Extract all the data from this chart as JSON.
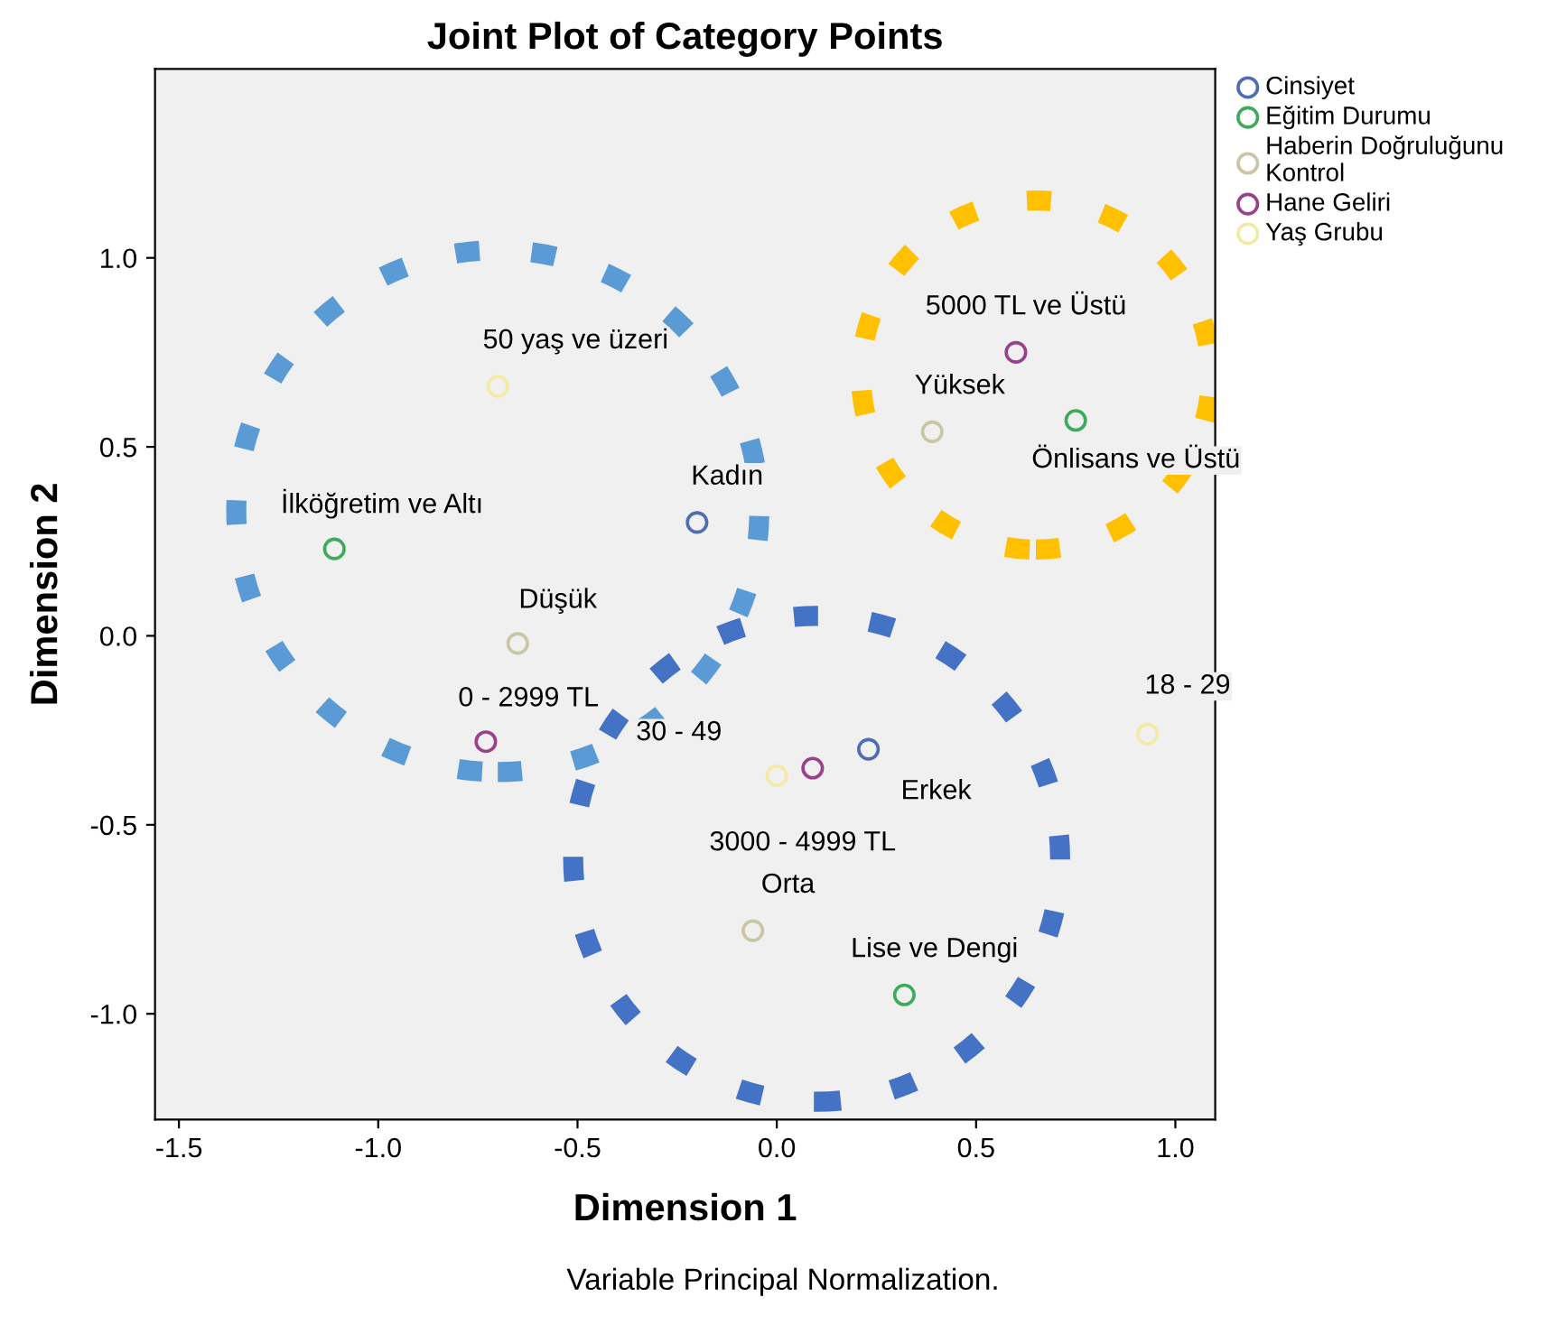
{
  "chart_data": {
    "type": "scatter",
    "title": "Joint Plot of Category Points",
    "xlabel": "Dimension 1",
    "ylabel": "Dimension 2",
    "series": [
      {
        "name": "Cinsiyet",
        "color": "#4f6db3",
        "x": [
          -0.2,
          0.23
        ],
        "values": [
          0.3,
          -0.3
        ]
      },
      {
        "name": "Eğitim Durumu",
        "color": "#3daa5c",
        "x": [
          -1.11,
          0.75,
          0.32
        ],
        "values": [
          0.23,
          0.57,
          -0.95
        ]
      },
      {
        "name": "Haberin Doğruluğunu Kontrol",
        "color": "#c9c6a6",
        "x": [
          0.39,
          -0.65,
          -0.06
        ],
        "values": [
          0.54,
          -0.02,
          -0.78
        ]
      },
      {
        "name": "Hane Geliri",
        "color": "#98428c",
        "x": [
          0.6,
          -0.73,
          0.09
        ],
        "values": [
          0.75,
          -0.28,
          -0.35
        ]
      },
      {
        "name": "Yaş Grubu",
        "color": "#f3eaa6",
        "x": [
          -0.7,
          0.93,
          0.0
        ],
        "values": [
          0.66,
          -0.26,
          -0.37
        ]
      }
    ],
    "annotations": [
      {
        "text": "Kadın",
        "x": -0.2,
        "y": 0.3
      },
      {
        "text": "Erkek",
        "x": 0.23,
        "y": -0.3
      },
      {
        "text": "İlköğretim ve Altı",
        "x": -1.11,
        "y": 0.23
      },
      {
        "text": "Önlisans ve Üstü",
        "x": 0.75,
        "y": 0.57
      },
      {
        "text": "Lise ve Dengi",
        "x": 0.32,
        "y": -0.95
      },
      {
        "text": "Yüksek",
        "x": 0.39,
        "y": 0.54
      },
      {
        "text": "Düşük",
        "x": -0.65,
        "y": -0.02
      },
      {
        "text": "Orta",
        "x": -0.06,
        "y": -0.78
      },
      {
        "text": "5000 TL ve Üstü",
        "x": 0.6,
        "y": 0.75
      },
      {
        "text": "0 - 2999 TL",
        "x": -0.73,
        "y": -0.28
      },
      {
        "text": "3000 - 4999 TL",
        "x": 0.09,
        "y": -0.35
      },
      {
        "text": "50 yaş ve üzeri",
        "x": -0.7,
        "y": 0.66
      },
      {
        "text": "18 - 29",
        "x": 0.93,
        "y": -0.26
      },
      {
        "text": "30 - 49",
        "x": 0.0,
        "y": -0.37
      },
      "Variable Principal Normalization."
    ],
    "xlim": [
      -1.56,
      1.1
    ],
    "ylim": [
      -1.28,
      1.5
    ],
    "xticks": [
      -1.5,
      {
        "value": -1,
        "label": "-1.0"
      },
      -0.5,
      {
        "value": 0,
        "label": "0.0"
      },
      0.5,
      {
        "value": 1,
        "label": "1.0"
      }
    ],
    "yticks": [
      {
        "value": -1,
        "label": "-1.0"
      },
      -0.5,
      {
        "value": 0,
        "label": "0.0"
      },
      0.5,
      {
        "value": 1,
        "label": "1.0"
      }
    ],
    "grid": false,
    "legend": "top right",
    "marker": "circle"
  }
}
